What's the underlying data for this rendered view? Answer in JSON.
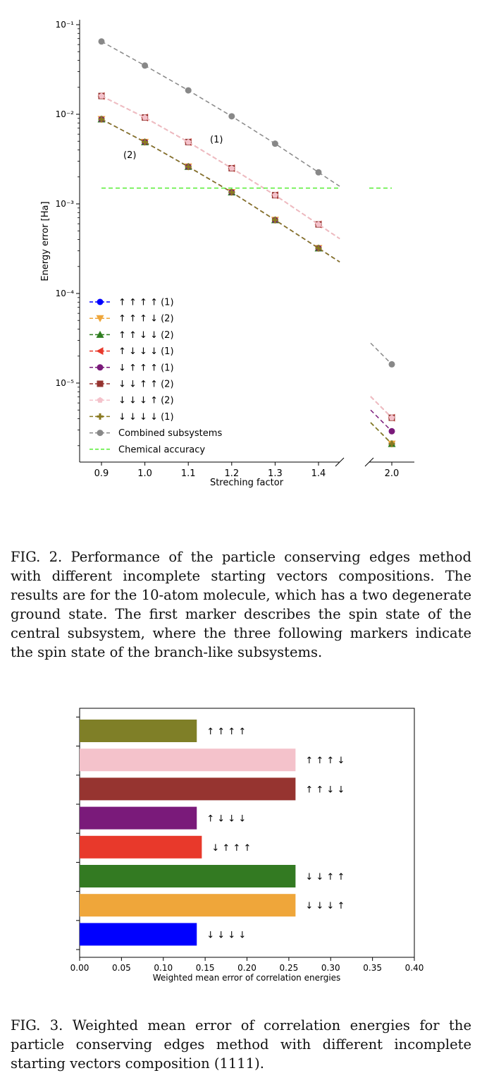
{
  "fig2": {
    "caption": "FIG. 2. Performance of the particle conserving edges method with different incomplete starting vectors compositions. The results are for the 10-atom molecule, which has a two degenerate ground state. The first marker describes the spin state of the central subsystem, where the three following markers indicate the spin state of the branch-like subsystems.",
    "chart_data": {
      "type": "line",
      "xlabel": "Streching factor",
      "ylabel": "Energy error [Ha]",
      "yscale": "log",
      "ylim": [
        1.5e-06,
        0.1
      ],
      "x_ticks": [
        "0.9",
        "1.0",
        "1.1",
        "1.2",
        "1.3",
        "1.4",
        "2.0"
      ],
      "y_ticks": [
        "10⁻¹",
        "10⁻²",
        "10⁻³",
        "10⁻⁴",
        "10⁻⁵"
      ],
      "broken_x_axis": true,
      "annotations": [
        "(1)",
        "(2)"
      ],
      "legend_position": "lower-left",
      "series": [
        {
          "name": "↑ ↑ ↑ ↑ (1)",
          "color": "#0000ff",
          "marker": "circle",
          "x": [
            0.9,
            1.0,
            1.1,
            1.2,
            1.3,
            1.4,
            2.0
          ],
          "y": [
            0.0088,
            0.0049,
            0.0026,
            0.00135,
            0.00066,
            0.00032,
            2.1e-06
          ]
        },
        {
          "name": "↑ ↑ ↑ ↓ (2)",
          "color": "#efa63a",
          "marker": "triangle-down",
          "x": [
            0.9,
            1.0,
            1.1,
            1.2,
            1.3,
            1.4,
            2.0
          ],
          "y": [
            0.0088,
            0.0049,
            0.0026,
            0.00135,
            0.00066,
            0.00032,
            2.1e-06
          ]
        },
        {
          "name": "↑ ↑ ↓ ↓ (2)",
          "color": "#2e7d1f",
          "marker": "triangle-up",
          "x": [
            0.9,
            1.0,
            1.1,
            1.2,
            1.3,
            1.4,
            2.0
          ],
          "y": [
            0.0088,
            0.0049,
            0.0026,
            0.00135,
            0.00066,
            0.00032,
            2.1e-06
          ]
        },
        {
          "name": "↑ ↓ ↓ ↓ (1)",
          "color": "#e8392b",
          "marker": "triangle-left",
          "x": [
            0.9,
            1.0,
            1.1,
            1.2,
            1.3,
            1.4,
            2.0
          ],
          "y": [
            0.016,
            0.0092,
            0.0049,
            0.0025,
            0.00125,
            0.00059,
            4.1e-06
          ]
        },
        {
          "name": "↓ ↑ ↑ ↑ (1)",
          "color": "#7a1a7a",
          "marker": "circle",
          "x": [
            0.9,
            1.0,
            1.1,
            1.2,
            1.3,
            1.4,
            2.0
          ],
          "y": [
            0.0088,
            0.0049,
            0.0026,
            0.00135,
            0.00066,
            0.00032,
            2.9e-06
          ]
        },
        {
          "name": "↓ ↓ ↑ ↑ (2)",
          "color": "#963430",
          "marker": "square",
          "x": [
            0.9,
            1.0,
            1.1,
            1.2,
            1.3,
            1.4,
            2.0
          ],
          "y": [
            0.016,
            0.0092,
            0.0049,
            0.0025,
            0.00125,
            0.00059,
            4.1e-06
          ]
        },
        {
          "name": "↓ ↓ ↓ ↑ (2)",
          "color": "#f4c2cb",
          "marker": "pentagon",
          "x": [
            0.9,
            1.0,
            1.1,
            1.2,
            1.3,
            1.4,
            2.0
          ],
          "y": [
            0.016,
            0.0092,
            0.0049,
            0.0025,
            0.00125,
            0.00059,
            4.1e-06
          ]
        },
        {
          "name": "↓ ↓ ↓ ↓ (1)",
          "color": "#8a7a22",
          "marker": "plus",
          "x": [
            0.9,
            1.0,
            1.1,
            1.2,
            1.3,
            1.4,
            2.0
          ],
          "y": [
            0.0088,
            0.0049,
            0.0026,
            0.00135,
            0.00066,
            0.00032,
            2.1e-06
          ]
        },
        {
          "name": "Combined subsystems",
          "color": "#888888",
          "marker": "circle",
          "x": [
            0.9,
            1.0,
            1.1,
            1.2,
            1.3,
            1.4,
            2.0
          ],
          "y": [
            0.065,
            0.035,
            0.0185,
            0.0095,
            0.0047,
            0.00225,
            1.62e-05
          ]
        },
        {
          "name": "Chemical accuracy",
          "color": "#55ee33",
          "marker": "none",
          "x": [
            0.9,
            1.4,
            2.0
          ],
          "y": [
            0.0015,
            0.0015,
            0.0015
          ]
        }
      ]
    }
  },
  "fig3": {
    "caption": "FIG. 3. Weighted mean error of correlation energies for the particle conserving edges method with different incomplete starting vectors composition (1111).",
    "chart_data": {
      "type": "bar",
      "orientation": "horizontal",
      "xlabel": "Weighted mean error of correlation energies",
      "xlim": [
        0,
        0.4
      ],
      "x_ticks": [
        "0.00",
        "0.05",
        "0.10",
        "0.15",
        "0.20",
        "0.25",
        "0.30",
        "0.35",
        "0.40"
      ],
      "categories": [
        "↑ ↑ ↑ ↑",
        "↑ ↑ ↑ ↓",
        "↑ ↑ ↓ ↓",
        "↑ ↓ ↓ ↓",
        "↓ ↑ ↑ ↑",
        "↓ ↓ ↑ ↑",
        "↓ ↓ ↓ ↑",
        "↓ ↓ ↓ ↓"
      ],
      "values": [
        0.14,
        0.258,
        0.258,
        0.14,
        0.146,
        0.258,
        0.258,
        0.14
      ],
      "colors": [
        "#7f7f27",
        "#f4c2cb",
        "#963430",
        "#7a1a7a",
        "#e8392b",
        "#337a22",
        "#efa63a",
        "#0000ff"
      ]
    }
  }
}
